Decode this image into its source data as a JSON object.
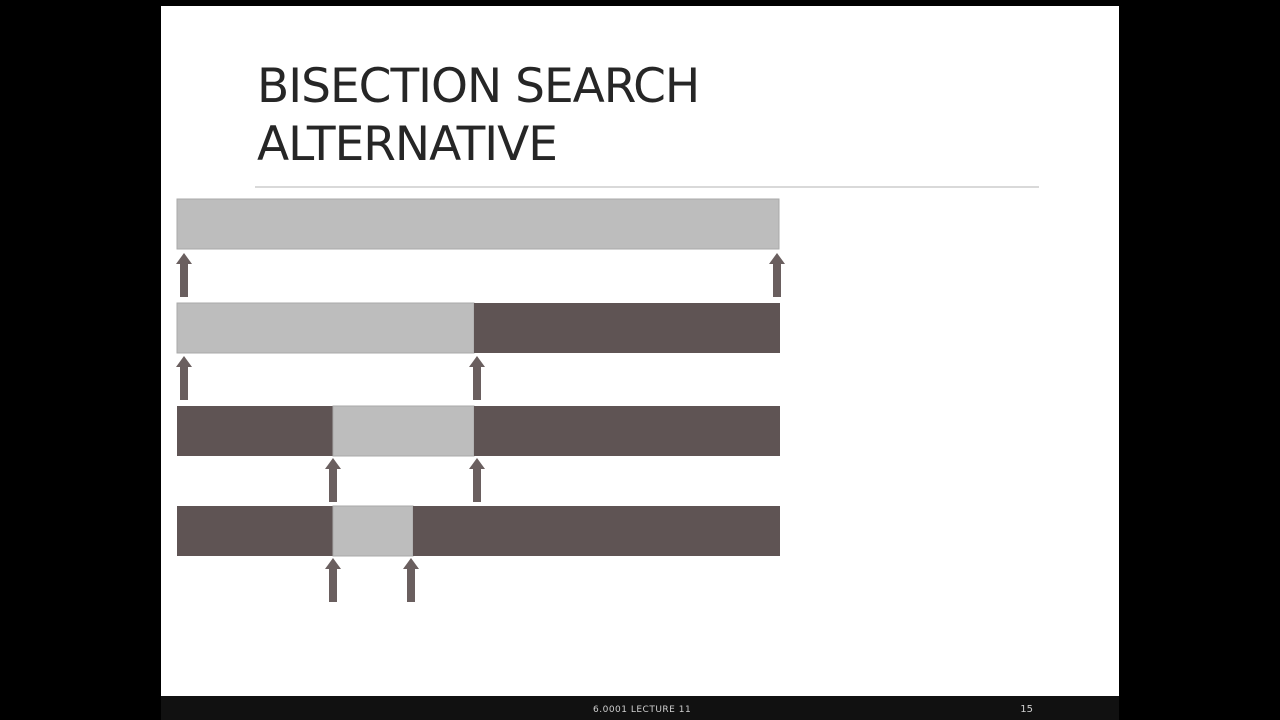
{
  "slide": {
    "title_line1": "BISECTION SEARCH",
    "title_line2": "ALTERNATIVE"
  },
  "footer": {
    "lecture": "6.0001 LECTURE 11",
    "page_number": "15"
  },
  "colors": {
    "active_segment": "#bdbdbd",
    "eliminated_segment": "#5f5454",
    "pointer_arrow": "#6a5f5f",
    "background": "#000000",
    "slide": "#ffffff"
  }
}
